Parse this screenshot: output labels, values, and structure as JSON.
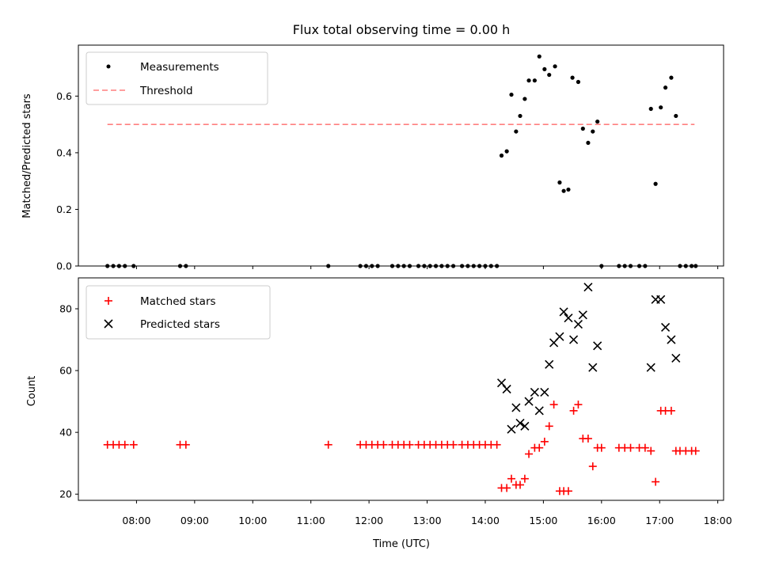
{
  "chart_data": [
    {
      "type": "scatter",
      "title": "Flux total observing time = 0.00 h",
      "ylabel": "Matched/Predicted stars",
      "ylim": [
        0,
        0.78
      ],
      "yticks": [
        0.0,
        0.2,
        0.4,
        0.6
      ],
      "ytick_labels": [
        "0.0",
        "0.2",
        "0.4",
        "0.6"
      ],
      "legend_position": "top-left",
      "threshold": {
        "name": "Threshold",
        "value": 0.5,
        "x_range": [
          7.5,
          17.6
        ],
        "color": "#ff7f7f",
        "style": "dashed"
      },
      "series": [
        {
          "name": "Measurements",
          "color": "#000000",
          "marker": "dot",
          "points": [
            [
              7.5,
              0
            ],
            [
              7.6,
              0
            ],
            [
              7.7,
              0
            ],
            [
              7.8,
              0
            ],
            [
              7.95,
              0
            ],
            [
              8.75,
              0
            ],
            [
              8.85,
              0
            ],
            [
              11.3,
              0
            ],
            [
              11.85,
              0
            ],
            [
              11.95,
              0
            ],
            [
              12.05,
              0
            ],
            [
              12.15,
              0
            ],
            [
              12.4,
              0
            ],
            [
              12.5,
              0
            ],
            [
              12.6,
              0
            ],
            [
              12.7,
              0
            ],
            [
              12.85,
              0
            ],
            [
              12.95,
              0
            ],
            [
              13.05,
              0
            ],
            [
              13.15,
              0
            ],
            [
              13.25,
              0
            ],
            [
              13.35,
              0
            ],
            [
              13.45,
              0
            ],
            [
              13.6,
              0
            ],
            [
              13.7,
              0
            ],
            [
              13.8,
              0
            ],
            [
              13.9,
              0
            ],
            [
              14.0,
              0
            ],
            [
              14.1,
              0
            ],
            [
              14.2,
              0
            ],
            [
              14.28,
              0.39
            ],
            [
              14.37,
              0.405
            ],
            [
              14.45,
              0.605
            ],
            [
              14.53,
              0.475
            ],
            [
              14.6,
              0.53
            ],
            [
              14.68,
              0.59
            ],
            [
              14.75,
              0.655
            ],
            [
              14.85,
              0.655
            ],
            [
              14.93,
              0.74
            ],
            [
              15.02,
              0.695
            ],
            [
              15.1,
              0.675
            ],
            [
              15.2,
              0.705
            ],
            [
              15.28,
              0.295
            ],
            [
              15.35,
              0.265
            ],
            [
              15.43,
              0.27
            ],
            [
              15.5,
              0.665
            ],
            [
              15.6,
              0.65
            ],
            [
              15.68,
              0.485
            ],
            [
              15.77,
              0.435
            ],
            [
              15.85,
              0.475
            ],
            [
              15.93,
              0.51
            ],
            [
              16.0,
              0
            ],
            [
              16.3,
              0
            ],
            [
              16.4,
              0
            ],
            [
              16.5,
              0
            ],
            [
              16.65,
              0
            ],
            [
              16.75,
              0
            ],
            [
              16.85,
              0.555
            ],
            [
              16.93,
              0.29
            ],
            [
              17.02,
              0.56
            ],
            [
              17.1,
              0.63
            ],
            [
              17.2,
              0.665
            ],
            [
              17.28,
              0.53
            ],
            [
              17.35,
              0
            ],
            [
              17.45,
              0
            ],
            [
              17.55,
              0
            ],
            [
              17.62,
              0
            ]
          ]
        }
      ]
    },
    {
      "type": "scatter",
      "title": "",
      "xlabel": "Time (UTC)",
      "ylabel": "Count",
      "xlim": [
        7.0,
        18.1
      ],
      "ylim": [
        18,
        90
      ],
      "xticks": [
        8,
        9,
        10,
        11,
        12,
        13,
        14,
        15,
        16,
        17,
        18
      ],
      "xtick_labels": [
        "08:00",
        "09:00",
        "10:00",
        "11:00",
        "12:00",
        "13:00",
        "14:00",
        "15:00",
        "16:00",
        "17:00",
        "18:00"
      ],
      "yticks": [
        20,
        40,
        60,
        80
      ],
      "ytick_labels": [
        "20",
        "40",
        "60",
        "80"
      ],
      "legend_position": "top-left",
      "series": [
        {
          "name": "Matched stars",
          "color": "#ff0000",
          "marker": "plus",
          "points": [
            [
              7.5,
              36
            ],
            [
              7.6,
              36
            ],
            [
              7.7,
              36
            ],
            [
              7.8,
              36
            ],
            [
              7.95,
              36
            ],
            [
              8.75,
              36
            ],
            [
              8.85,
              36
            ],
            [
              11.3,
              36
            ],
            [
              11.85,
              36
            ],
            [
              11.95,
              36
            ],
            [
              12.05,
              36
            ],
            [
              12.15,
              36
            ],
            [
              12.25,
              36
            ],
            [
              12.4,
              36
            ],
            [
              12.5,
              36
            ],
            [
              12.6,
              36
            ],
            [
              12.7,
              36
            ],
            [
              12.85,
              36
            ],
            [
              12.95,
              36
            ],
            [
              13.05,
              36
            ],
            [
              13.15,
              36
            ],
            [
              13.25,
              36
            ],
            [
              13.35,
              36
            ],
            [
              13.45,
              36
            ],
            [
              13.6,
              36
            ],
            [
              13.7,
              36
            ],
            [
              13.8,
              36
            ],
            [
              13.9,
              36
            ],
            [
              14.0,
              36
            ],
            [
              14.1,
              36
            ],
            [
              14.2,
              36
            ],
            [
              14.28,
              22
            ],
            [
              14.37,
              22
            ],
            [
              14.45,
              25
            ],
            [
              14.53,
              23
            ],
            [
              14.6,
              23
            ],
            [
              14.68,
              25
            ],
            [
              14.75,
              33
            ],
            [
              14.85,
              35
            ],
            [
              14.93,
              35
            ],
            [
              15.02,
              37
            ],
            [
              15.1,
              42
            ],
            [
              15.18,
              49
            ],
            [
              15.28,
              21
            ],
            [
              15.35,
              21
            ],
            [
              15.43,
              21
            ],
            [
              15.52,
              47
            ],
            [
              15.6,
              49
            ],
            [
              15.68,
              38
            ],
            [
              15.77,
              38
            ],
            [
              15.85,
              29
            ],
            [
              15.93,
              35
            ],
            [
              16.0,
              35
            ],
            [
              16.3,
              35
            ],
            [
              16.4,
              35
            ],
            [
              16.5,
              35
            ],
            [
              16.65,
              35
            ],
            [
              16.75,
              35
            ],
            [
              16.85,
              34
            ],
            [
              16.93,
              24
            ],
            [
              17.02,
              47
            ],
            [
              17.1,
              47
            ],
            [
              17.2,
              47
            ],
            [
              17.28,
              34
            ],
            [
              17.35,
              34
            ],
            [
              17.45,
              34
            ],
            [
              17.55,
              34
            ],
            [
              17.62,
              34
            ]
          ]
        },
        {
          "name": "Predicted stars",
          "color": "#000000",
          "marker": "x",
          "points": [
            [
              14.28,
              56
            ],
            [
              14.37,
              54
            ],
            [
              14.45,
              41
            ],
            [
              14.53,
              48
            ],
            [
              14.6,
              43
            ],
            [
              14.68,
              42
            ],
            [
              14.75,
              50
            ],
            [
              14.85,
              53
            ],
            [
              14.93,
              47
            ],
            [
              15.02,
              53
            ],
            [
              15.1,
              62
            ],
            [
              15.18,
              69
            ],
            [
              15.28,
              71
            ],
            [
              15.35,
              79
            ],
            [
              15.43,
              77
            ],
            [
              15.52,
              70
            ],
            [
              15.6,
              75
            ],
            [
              15.68,
              78
            ],
            [
              15.77,
              87
            ],
            [
              15.85,
              61
            ],
            [
              15.93,
              68
            ],
            [
              16.85,
              61
            ],
            [
              16.93,
              83
            ],
            [
              17.02,
              83
            ],
            [
              17.1,
              74
            ],
            [
              17.2,
              70
            ],
            [
              17.28,
              64
            ]
          ]
        }
      ]
    }
  ]
}
